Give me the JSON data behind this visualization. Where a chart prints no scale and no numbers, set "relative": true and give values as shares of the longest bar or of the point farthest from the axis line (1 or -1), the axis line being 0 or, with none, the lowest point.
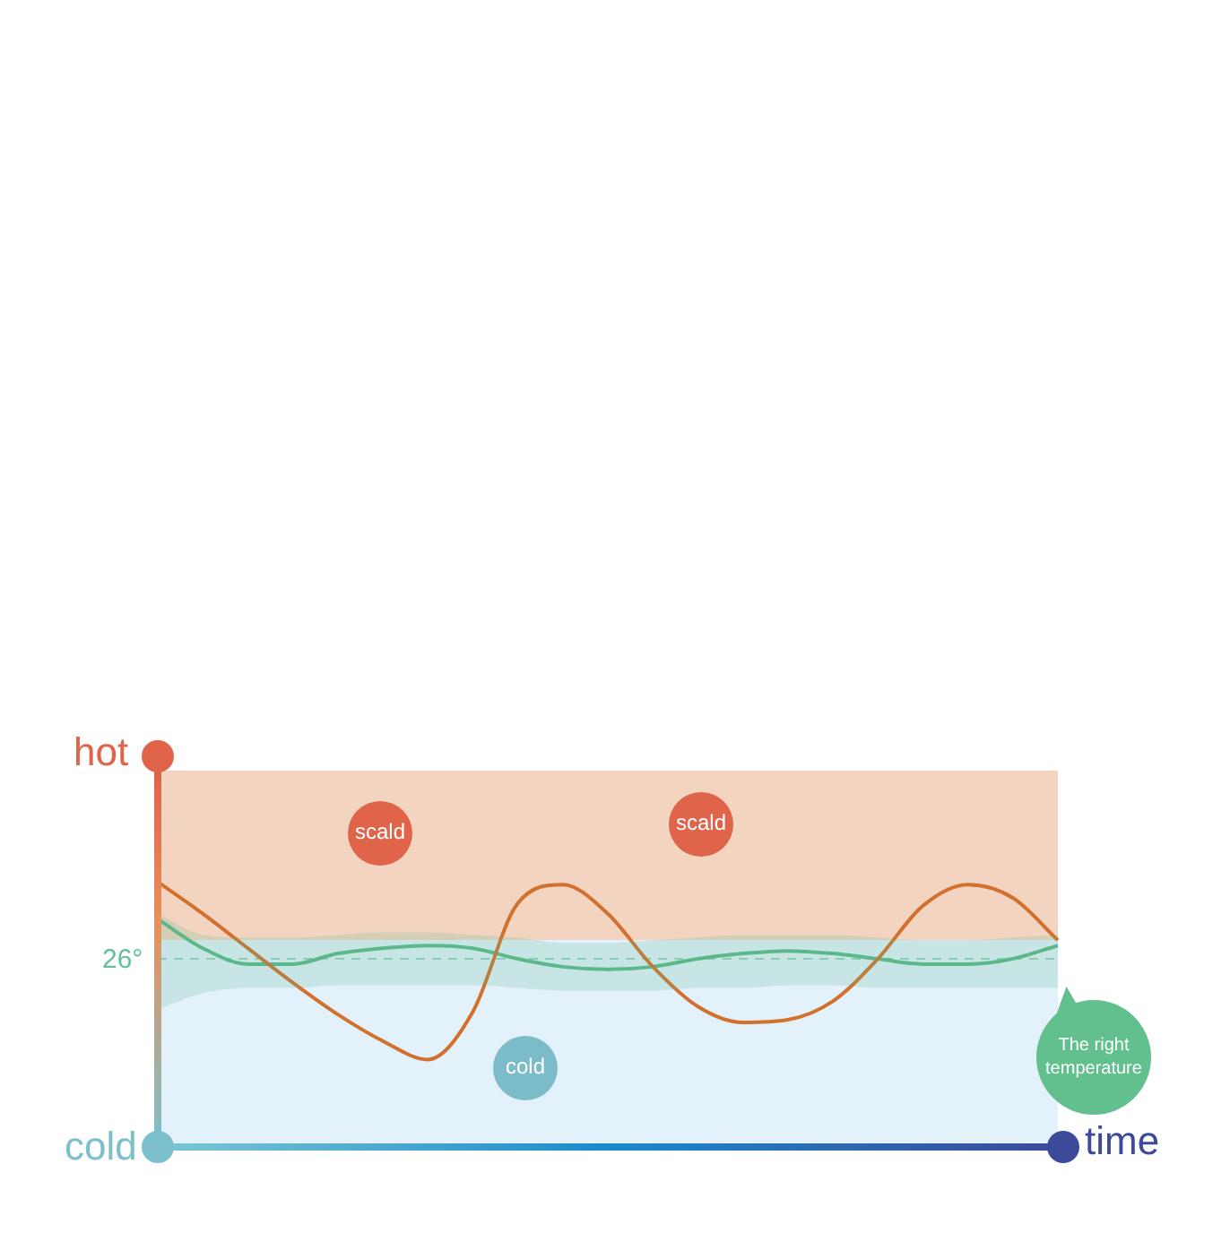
{
  "chart_data": {
    "type": "line",
    "relative": true,
    "xlabel": "time",
    "categories": [
      null,
      null,
      null,
      null,
      null,
      null,
      null,
      null,
      null,
      null,
      null,
      null,
      null,
      null,
      null,
      null,
      null,
      null,
      null,
      null,
      null
    ],
    "series": [
      {
        "color": "#d2702e",
        "values": [
          1.0,
          0.88,
          0.75,
          0.62,
          0.5,
          0.4,
          0.33,
          0.51,
          0.92,
          0.99,
          0.88,
          0.68,
          0.53,
          0.47,
          0.48,
          0.55,
          0.71,
          0.91,
          0.99,
          0.94,
          0.78
        ]
      },
      {
        "color": "#5cb88a",
        "values": [
          0.86,
          0.75,
          0.69,
          0.69,
          0.73,
          0.75,
          0.76,
          0.75,
          0.71,
          0.68,
          0.67,
          0.68,
          0.71,
          0.73,
          0.74,
          0.73,
          0.71,
          0.69,
          0.69,
          0.71,
          0.76
        ],
        "lower": [
          0.52,
          0.58,
          0.6,
          0.6,
          0.61,
          0.61,
          0.61,
          0.61,
          0.6,
          0.59,
          0.59,
          0.59,
          0.6,
          0.6,
          0.61,
          0.61,
          0.6,
          0.6,
          0.6,
          0.6,
          0.6
        ],
        "upper": [
          0.88,
          0.8,
          0.79,
          0.79,
          0.8,
          0.81,
          0.81,
          0.8,
          0.79,
          0.77,
          0.77,
          0.78,
          0.79,
          0.8,
          0.8,
          0.8,
          0.79,
          0.78,
          0.78,
          0.79,
          0.8
        ]
      }
    ],
    "bands": [
      {
        "axis": "y",
        "from": 0.78,
        "to": 1.42,
        "color": "#f2d4c0"
      },
      {
        "axis": "y",
        "from": 0,
        "to": 0.78,
        "color": "#e3f1fa"
      }
    ],
    "ref_lines": [
      {
        "axis": "y",
        "value": 0.71,
        "color": "#62c09a",
        "line_style": "dashed"
      }
    ],
    "annotations": [
      "scald",
      "scald",
      "cold",
      "The right temperature",
      "hot",
      "cold",
      "26°"
    ],
    "legend": false,
    "marker": "none",
    "line_style": "solid"
  }
}
